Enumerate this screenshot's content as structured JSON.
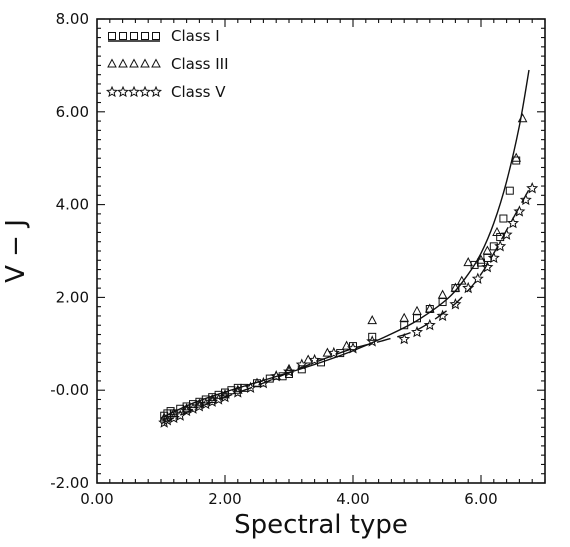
{
  "chart_data": {
    "type": "scatter",
    "title": "",
    "xlabel": "Spectral type",
    "ylabel": "V − J",
    "xlim": [
      0,
      7
    ],
    "ylim": [
      -2,
      8
    ],
    "x_ticks": [
      0,
      2,
      4,
      6
    ],
    "x_tick_labels": [
      "0.00",
      "2.00",
      "4.00",
      "6.00"
    ],
    "y_ticks": [
      -2,
      0,
      2,
      4,
      6,
      8
    ],
    "y_tick_labels": [
      "-2.00",
      "-0.00",
      "2.00",
      "4.00",
      "6.00",
      "8.00"
    ],
    "minor_x_step": 0.2,
    "minor_y_step": 0.2,
    "grid": false,
    "legend_position": "top-left",
    "series": [
      {
        "name": "Class I",
        "marker": "square",
        "line": "solid",
        "points": [
          [
            1.05,
            -0.55
          ],
          [
            1.1,
            -0.5
          ],
          [
            1.15,
            -0.45
          ],
          [
            1.2,
            -0.5
          ],
          [
            1.3,
            -0.4
          ],
          [
            1.4,
            -0.35
          ],
          [
            1.5,
            -0.3
          ],
          [
            1.6,
            -0.25
          ],
          [
            1.7,
            -0.2
          ],
          [
            1.8,
            -0.15
          ],
          [
            1.9,
            -0.1
          ],
          [
            2.0,
            -0.05
          ],
          [
            2.1,
            0.0
          ],
          [
            2.2,
            0.05
          ],
          [
            2.3,
            0.05
          ],
          [
            2.5,
            0.15
          ],
          [
            2.7,
            0.25
          ],
          [
            2.9,
            0.3
          ],
          [
            3.0,
            0.35
          ],
          [
            3.2,
            0.45
          ],
          [
            3.5,
            0.6
          ],
          [
            3.8,
            0.8
          ],
          [
            4.0,
            0.95
          ],
          [
            4.3,
            1.15
          ],
          [
            4.8,
            1.4
          ],
          [
            5.0,
            1.55
          ],
          [
            5.2,
            1.75
          ],
          [
            5.4,
            1.9
          ],
          [
            5.6,
            2.2
          ],
          [
            5.9,
            2.7
          ],
          [
            6.0,
            2.75
          ],
          [
            6.1,
            2.85
          ],
          [
            6.2,
            3.1
          ],
          [
            6.3,
            3.3
          ],
          [
            6.35,
            3.7
          ],
          [
            6.45,
            4.3
          ],
          [
            6.55,
            4.95
          ]
        ],
        "fit": [
          [
            1.0,
            -0.6
          ],
          [
            1.5,
            -0.28
          ],
          [
            2.0,
            -0.04
          ],
          [
            2.5,
            0.17
          ],
          [
            3.0,
            0.38
          ],
          [
            3.5,
            0.6
          ],
          [
            4.0,
            0.85
          ],
          [
            4.5,
            1.15
          ],
          [
            5.0,
            1.5
          ],
          [
            5.5,
            2.0
          ],
          [
            5.8,
            2.5
          ],
          [
            6.0,
            2.95
          ],
          [
            6.2,
            3.6
          ],
          [
            6.4,
            4.5
          ],
          [
            6.6,
            5.7
          ],
          [
            6.75,
            6.9
          ]
        ]
      },
      {
        "name": "Class III",
        "marker": "triangle",
        "line": "none",
        "points": [
          [
            1.05,
            -0.6
          ],
          [
            1.2,
            -0.5
          ],
          [
            1.4,
            -0.4
          ],
          [
            1.6,
            -0.3
          ],
          [
            1.8,
            -0.2
          ],
          [
            2.0,
            -0.1
          ],
          [
            2.2,
            0.0
          ],
          [
            2.5,
            0.15
          ],
          [
            2.8,
            0.3
          ],
          [
            3.0,
            0.45
          ],
          [
            3.3,
            0.65
          ],
          [
            3.6,
            0.8
          ],
          [
            3.9,
            0.95
          ],
          [
            4.3,
            1.5
          ],
          [
            4.8,
            1.55
          ],
          [
            5.0,
            1.7
          ],
          [
            5.2,
            1.75
          ],
          [
            5.4,
            2.05
          ],
          [
            5.6,
            2.2
          ],
          [
            5.7,
            2.35
          ],
          [
            5.8,
            2.75
          ],
          [
            6.0,
            2.8
          ],
          [
            6.1,
            3.0
          ],
          [
            6.25,
            3.4
          ],
          [
            6.55,
            5.0
          ],
          [
            6.65,
            5.85
          ]
        ]
      },
      {
        "name": "Class V",
        "marker": "star",
        "line": "dashed",
        "points": [
          [
            1.05,
            -0.7
          ],
          [
            1.1,
            -0.65
          ],
          [
            1.2,
            -0.6
          ],
          [
            1.3,
            -0.55
          ],
          [
            1.4,
            -0.45
          ],
          [
            1.5,
            -0.4
          ],
          [
            1.6,
            -0.35
          ],
          [
            1.7,
            -0.3
          ],
          [
            1.8,
            -0.25
          ],
          [
            1.9,
            -0.2
          ],
          [
            2.0,
            -0.15
          ],
          [
            2.2,
            -0.05
          ],
          [
            2.4,
            0.05
          ],
          [
            2.6,
            0.15
          ],
          [
            2.8,
            0.3
          ],
          [
            3.0,
            0.4
          ],
          [
            3.2,
            0.55
          ],
          [
            3.4,
            0.65
          ],
          [
            3.7,
            0.8
          ],
          [
            4.0,
            0.9
          ],
          [
            4.3,
            1.05
          ],
          [
            4.8,
            1.1
          ],
          [
            5.0,
            1.25
          ],
          [
            5.2,
            1.4
          ],
          [
            5.4,
            1.6
          ],
          [
            5.6,
            1.85
          ],
          [
            5.8,
            2.2
          ],
          [
            5.95,
            2.4
          ],
          [
            6.1,
            2.65
          ],
          [
            6.2,
            2.85
          ],
          [
            6.3,
            3.1
          ],
          [
            6.4,
            3.35
          ],
          [
            6.5,
            3.6
          ],
          [
            6.6,
            3.85
          ],
          [
            6.7,
            4.1
          ],
          [
            6.8,
            4.35
          ]
        ],
        "fit": [
          [
            1.0,
            -0.72
          ],
          [
            1.5,
            -0.42
          ],
          [
            2.0,
            -0.15
          ],
          [
            2.5,
            0.1
          ],
          [
            3.0,
            0.38
          ],
          [
            3.5,
            0.65
          ],
          [
            4.0,
            0.9
          ],
          [
            4.5,
            1.08
          ],
          [
            5.0,
            1.3
          ],
          [
            5.5,
            1.75
          ],
          [
            5.8,
            2.15
          ],
          [
            6.0,
            2.5
          ],
          [
            6.2,
            2.95
          ],
          [
            6.4,
            3.45
          ],
          [
            6.6,
            3.95
          ],
          [
            6.8,
            4.45
          ]
        ]
      }
    ]
  }
}
